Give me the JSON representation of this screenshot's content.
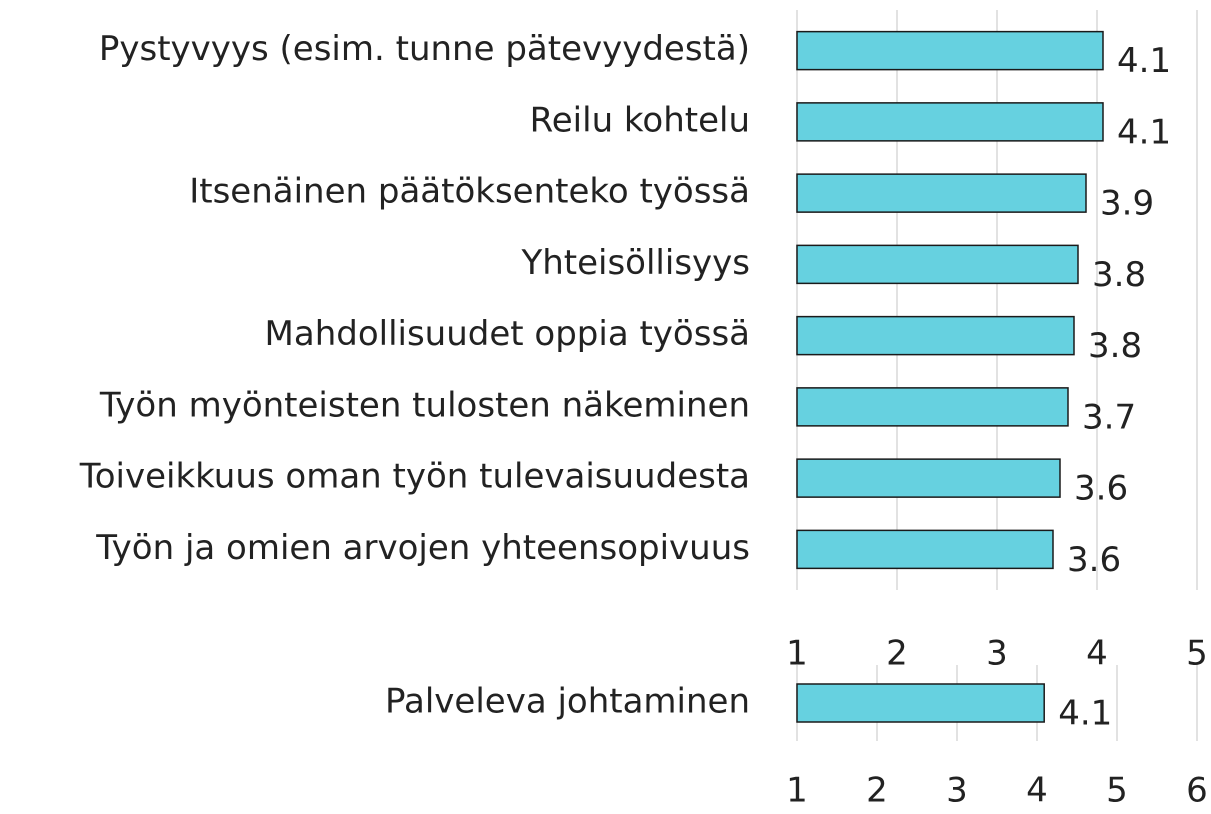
{
  "chart_data": [
    {
      "type": "bar",
      "orientation": "horizontal",
      "categories": [
        "Pystyvyys (esim. tunne pätevyydestä)",
        "Reilu kohtelu",
        "Itsenäinen päätöksenteko työssä",
        "Yhteisöllisyys",
        "Mahdollisuudet oppia työssä",
        "Työn myönteisten tulosten näkeminen",
        "Toiveikkuus oman työn tulevaisuudesta",
        "Työn ja omien arvojen yhteensopivuus"
      ],
      "values": [
        4.06,
        4.06,
        3.89,
        3.81,
        3.77,
        3.71,
        3.63,
        3.56
      ],
      "value_labels": [
        "4.1",
        "4.1",
        "3.9",
        "3.8",
        "3.8",
        "3.7",
        "3.6",
        "3.6"
      ],
      "color": "#66d1e0",
      "xlim": [
        1,
        5
      ],
      "xticks": [
        1,
        2,
        3,
        4,
        5
      ],
      "grid": true
    },
    {
      "type": "bar",
      "orientation": "horizontal",
      "categories": [
        "Palveleva johtaminen"
      ],
      "values": [
        4.09
      ],
      "value_labels": [
        "4.1"
      ],
      "color": "#66d1e0",
      "xlim": [
        1,
        6
      ],
      "xticks": [
        1,
        2,
        3,
        4,
        5,
        6
      ],
      "grid": true
    }
  ]
}
